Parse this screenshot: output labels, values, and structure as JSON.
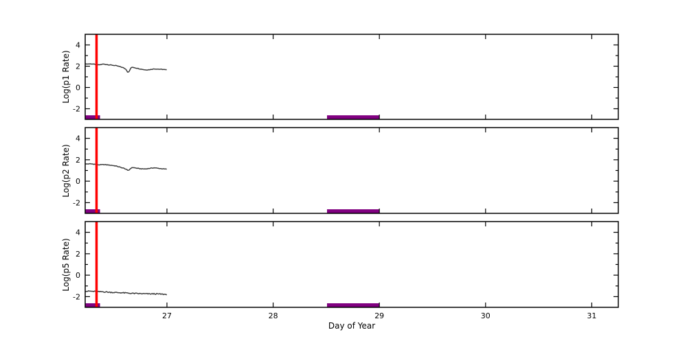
{
  "figure": {
    "background": "#ffffff"
  },
  "chart_data": {
    "type": "line",
    "title": "",
    "xlabel": "Day of Year",
    "xlim": [
      26.23,
      31.25
    ],
    "xticks": [
      27,
      28,
      29,
      30,
      31
    ],
    "ylim": [
      -3,
      5
    ],
    "yticks_major": [
      -2,
      0,
      2,
      4
    ],
    "yticks_minor": [
      -1,
      1,
      3
    ],
    "grid": false,
    "legend": "none",
    "frame_color": "#000000",
    "tick_label_color": "#000000",
    "event_line": {
      "x": 26.337,
      "color": "#ff0000",
      "width": 3.5
    },
    "interval_bars": {
      "color": "#800080",
      "y_bottom": -3,
      "y_top": -2.62,
      "spans": [
        {
          "x0": 26.23,
          "x1": 26.37
        },
        {
          "x0": 28.507,
          "x1": 29.0
        }
      ]
    },
    "trace_style": {
      "color": "#3d3d3d",
      "width": 1.5
    },
    "subplots": [
      {
        "id": "p1",
        "ylabel": "Log(p1 Rate)",
        "noise": 0.025,
        "x": [
          26.23,
          26.28,
          26.32,
          26.36,
          26.4,
          26.44,
          26.48,
          26.52,
          26.56,
          26.59,
          26.615,
          26.63,
          26.645,
          26.66,
          26.68,
          26.72,
          26.76,
          26.8,
          26.84,
          26.88,
          26.92,
          26.96,
          27.0
        ],
        "y": [
          2.2,
          2.22,
          2.18,
          2.12,
          2.2,
          2.15,
          2.1,
          2.05,
          1.95,
          1.85,
          1.7,
          1.45,
          1.5,
          1.85,
          1.9,
          1.8,
          1.72,
          1.65,
          1.68,
          1.75,
          1.72,
          1.7,
          1.65
        ]
      },
      {
        "id": "p2",
        "ylabel": "Log(p2 Rate)",
        "noise": 0.025,
        "x": [
          26.23,
          26.28,
          26.32,
          26.36,
          26.4,
          26.44,
          26.48,
          26.52,
          26.56,
          26.59,
          26.615,
          26.63,
          26.645,
          26.66,
          26.68,
          26.72,
          26.76,
          26.8,
          26.84,
          26.88,
          26.92,
          26.96,
          27.0
        ],
        "y": [
          1.6,
          1.62,
          1.58,
          1.52,
          1.55,
          1.52,
          1.48,
          1.42,
          1.3,
          1.22,
          1.12,
          1.0,
          1.05,
          1.22,
          1.28,
          1.2,
          1.15,
          1.15,
          1.2,
          1.25,
          1.2,
          1.15,
          1.12
        ]
      },
      {
        "id": "p5",
        "ylabel": "Log(p5 Rate)",
        "noise": 0.05,
        "x": [
          26.23,
          26.28,
          26.32,
          26.36,
          26.4,
          26.44,
          26.48,
          26.52,
          26.56,
          26.59,
          26.615,
          26.63,
          26.645,
          26.66,
          26.68,
          26.72,
          26.76,
          26.8,
          26.84,
          26.88,
          26.92,
          26.96,
          27.0
        ],
        "y": [
          -1.48,
          -1.5,
          -1.52,
          -1.55,
          -1.55,
          -1.58,
          -1.6,
          -1.62,
          -1.63,
          -1.65,
          -1.66,
          -1.67,
          -1.68,
          -1.7,
          -1.7,
          -1.72,
          -1.73,
          -1.74,
          -1.75,
          -1.74,
          -1.76,
          -1.78,
          -1.8
        ]
      }
    ]
  }
}
